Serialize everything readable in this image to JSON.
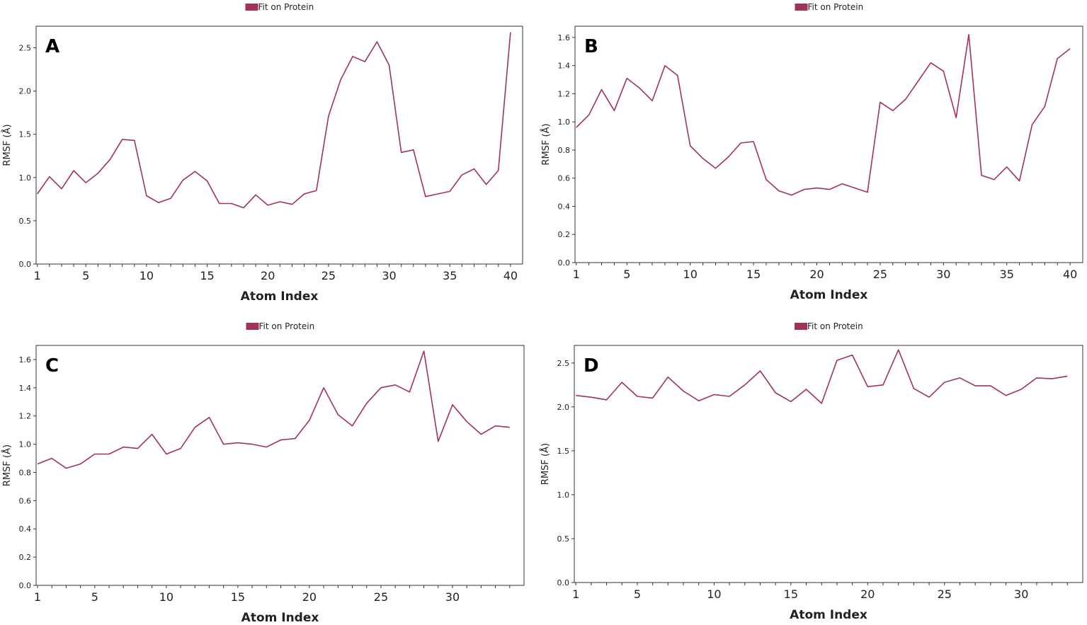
{
  "colors": {
    "line": "#a3325a",
    "axis": "#333333",
    "text": "#222222"
  },
  "chart_data": [
    {
      "type": "line",
      "panel_label": "A",
      "legend": "Fit on Protein",
      "xlabel": "Atom Index",
      "ylabel": "RMSF (Å)",
      "ylim": [
        0,
        2.75
      ],
      "yticks": [
        "0.0",
        "0.5",
        "1.0",
        "1.5",
        "2.0",
        "2.5"
      ],
      "xlim": [
        0.9,
        41
      ],
      "xtick_labels": [
        "1",
        "5",
        "10",
        "15",
        "20",
        "25",
        "30",
        "35",
        "40"
      ],
      "x": [
        1,
        2,
        3,
        4,
        5,
        6,
        7,
        8,
        9,
        10,
        11,
        12,
        13,
        14,
        15,
        16,
        17,
        18,
        19,
        20,
        21,
        22,
        23,
        24,
        25,
        26,
        27,
        28,
        29,
        30,
        31,
        32,
        33,
        34,
        35,
        36,
        37,
        38,
        39,
        40
      ],
      "values": [
        0.81,
        1.01,
        0.87,
        1.08,
        0.94,
        1.05,
        1.21,
        1.44,
        1.43,
        0.79,
        0.71,
        0.76,
        0.97,
        1.07,
        0.96,
        0.7,
        0.7,
        0.65,
        0.8,
        0.68,
        0.72,
        0.69,
        0.81,
        0.85,
        1.71,
        2.13,
        2.4,
        2.34,
        2.57,
        2.3,
        1.29,
        1.32,
        0.78,
        0.81,
        0.84,
        1.03,
        1.1,
        0.92,
        1.08,
        2.68
      ]
    },
    {
      "type": "line",
      "panel_label": "B",
      "legend": "Fit on Protein",
      "xlabel": "Atom Index",
      "ylabel": "RMSF (Å)",
      "ylim": [
        0,
        1.68
      ],
      "yticks": [
        "0.0",
        "0.2",
        "0.4",
        "0.6",
        "0.8",
        "1.0",
        "1.2",
        "1.4",
        "1.6"
      ],
      "xlim": [
        0.9,
        41
      ],
      "xtick_labels": [
        "1",
        "5",
        "10",
        "15",
        "20",
        "25",
        "30",
        "35",
        "40"
      ],
      "x": [
        1,
        2,
        3,
        4,
        5,
        6,
        7,
        8,
        9,
        10,
        11,
        12,
        13,
        14,
        15,
        16,
        17,
        18,
        19,
        20,
        21,
        22,
        23,
        24,
        25,
        26,
        27,
        28,
        29,
        30,
        31,
        32,
        33,
        34,
        35,
        36,
        37,
        38,
        39,
        40
      ],
      "values": [
        0.96,
        1.05,
        1.23,
        1.08,
        1.31,
        1.24,
        1.15,
        1.4,
        1.33,
        0.83,
        0.74,
        0.67,
        0.75,
        0.85,
        0.86,
        0.59,
        0.51,
        0.48,
        0.52,
        0.53,
        0.52,
        0.56,
        0.53,
        0.5,
        1.14,
        1.08,
        1.16,
        1.29,
        1.42,
        1.36,
        1.03,
        1.62,
        0.62,
        0.59,
        0.68,
        0.58,
        0.98,
        1.11,
        1.45,
        1.52
      ]
    },
    {
      "type": "line",
      "panel_label": "C",
      "legend": "Fit on Protein",
      "xlabel": "Atom Index",
      "ylabel": "RMSF (Å)",
      "ylim": [
        0,
        1.7
      ],
      "yticks": [
        "0.0",
        "0.2",
        "0.4",
        "0.6",
        "0.8",
        "1.0",
        "1.2",
        "1.4",
        "1.6"
      ],
      "xlim": [
        0.9,
        35
      ],
      "xtick_labels": [
        "1",
        "5",
        "10",
        "15",
        "20",
        "25",
        "30"
      ],
      "x": [
        1,
        2,
        3,
        4,
        5,
        6,
        7,
        8,
        9,
        10,
        11,
        12,
        13,
        14,
        15,
        16,
        17,
        18,
        19,
        20,
        21,
        22,
        23,
        24,
        25,
        26,
        27,
        28,
        29,
        30,
        31,
        32,
        33,
        34
      ],
      "values": [
        0.86,
        0.9,
        0.83,
        0.86,
        0.93,
        0.93,
        0.98,
        0.97,
        1.07,
        0.93,
        0.97,
        1.12,
        1.19,
        1.0,
        1.01,
        1.0,
        0.98,
        1.03,
        1.04,
        1.17,
        1.4,
        1.21,
        1.13,
        1.29,
        1.4,
        1.42,
        1.37,
        1.66,
        1.02,
        1.28,
        1.16,
        1.07,
        1.13,
        1.12
      ]
    },
    {
      "type": "line",
      "panel_label": "D",
      "legend": "Fit on Protein",
      "xlabel": "Atom Index",
      "ylabel": "RMSF (Å)",
      "ylim": [
        0,
        2.7
      ],
      "yticks": [
        "0.0",
        "0.5",
        "1.0",
        "1.5",
        "2.0",
        "2.5"
      ],
      "xlim": [
        0.9,
        34
      ],
      "xtick_labels": [
        "1",
        "5",
        "10",
        "15",
        "20",
        "25",
        "30"
      ],
      "x": [
        1,
        2,
        3,
        4,
        5,
        6,
        7,
        8,
        9,
        10,
        11,
        12,
        13,
        14,
        15,
        16,
        17,
        18,
        19,
        20,
        21,
        22,
        23,
        24,
        25,
        26,
        27,
        28,
        29,
        30,
        31,
        32,
        33
      ],
      "values": [
        2.13,
        2.11,
        2.08,
        2.28,
        2.12,
        2.1,
        2.34,
        2.18,
        2.07,
        2.14,
        2.12,
        2.25,
        2.41,
        2.16,
        2.06,
        2.2,
        2.04,
        2.53,
        2.59,
        2.23,
        2.25,
        2.65,
        2.21,
        2.11,
        2.28,
        2.33,
        2.24,
        2.24,
        2.13,
        2.2,
        2.33,
        2.32,
        2.35
      ]
    }
  ]
}
